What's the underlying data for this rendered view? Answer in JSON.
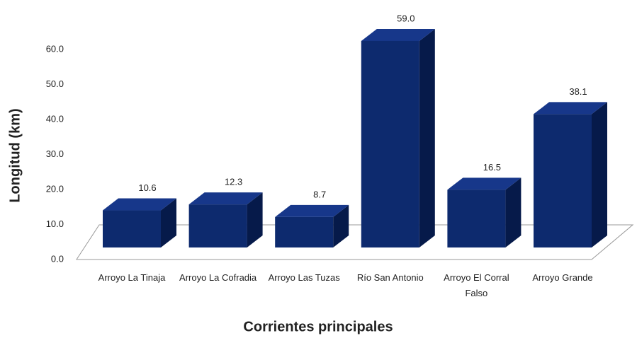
{
  "chart_data": {
    "type": "bar3d",
    "x_label": "Corrientes principales",
    "y_label": "Longitud (km)",
    "categories": [
      "Arroyo La Tinaja",
      "Arroyo La Cofradia",
      "Arroyo Las Tuzas",
      "Río San Antonio",
      "Arroyo El Corral Falso",
      "Arroyo Grande"
    ],
    "values": [
      10.6,
      12.3,
      8.7,
      59.0,
      16.5,
      38.1
    ],
    "value_labels": [
      "10.6",
      "12.3",
      "8.7",
      "59.0",
      "16.5",
      "38.1"
    ],
    "color": "#0d2a6e",
    "ylim": [
      0,
      60
    ],
    "yticks": [
      {
        "value": 0,
        "label": "0.0"
      },
      {
        "value": 10,
        "label": "10.0"
      },
      {
        "value": 20,
        "label": "20.0"
      },
      {
        "value": 30,
        "label": "30.0"
      },
      {
        "value": 40,
        "label": "40.0"
      },
      {
        "value": 50,
        "label": "50.0"
      },
      {
        "value": 60,
        "label": "60.0"
      }
    ]
  }
}
